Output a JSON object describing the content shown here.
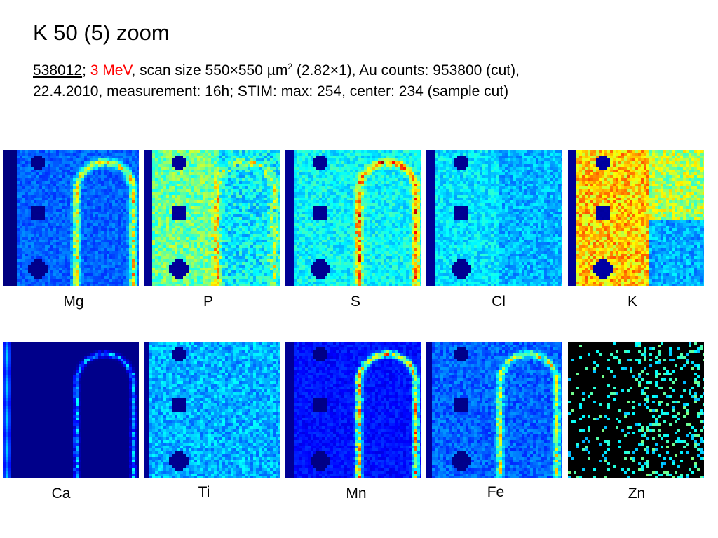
{
  "slide": {
    "title": "K 50 (5) zoom",
    "caption": {
      "sample_id": "538012",
      "separator": "; ",
      "energy": "3 MeV",
      "scan_text_before_sup": ", scan size 550×550 µm",
      "scan_sup": "2",
      "scan_text_after_sup": " (2.82×1), Au counts: 953800 (cut), 22.4.2010, measurement: 16h; STIM: max: 254, center: 234 (sample cut)"
    },
    "colors": {
      "energy_text": "#ff0000",
      "map_background": "#00007a",
      "map_high": "#ffff00"
    }
  },
  "maps": [
    {
      "element": "Mg"
    },
    {
      "element": "P"
    },
    {
      "element": "S"
    },
    {
      "element": "Cl"
    },
    {
      "element": "K"
    },
    {
      "element": "Ca"
    },
    {
      "element": "Ti"
    },
    {
      "element": "Mn"
    },
    {
      "element": "Fe"
    },
    {
      "element": "Zn"
    }
  ]
}
